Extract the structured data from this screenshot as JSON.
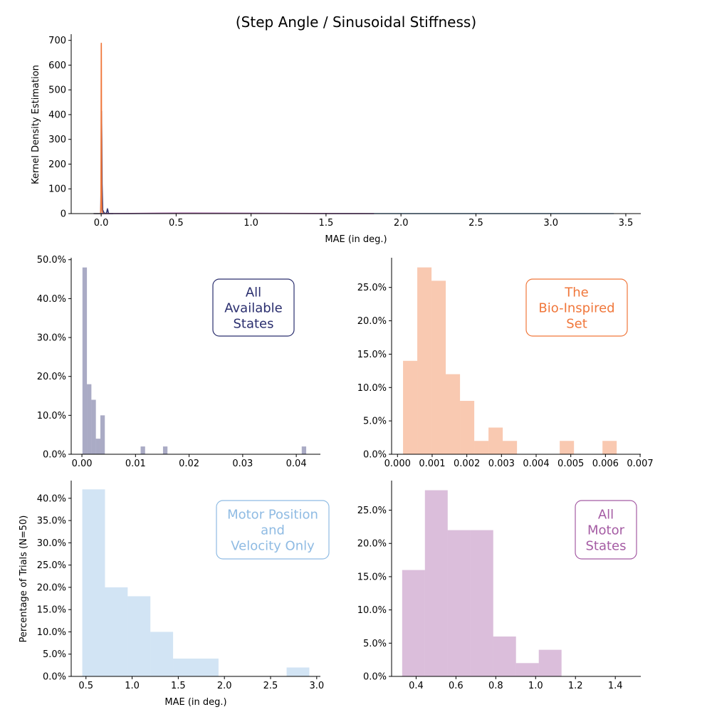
{
  "figure": {
    "title": "(Step Angle / Sinusoidal Stiffness)"
  },
  "colors": {
    "all_available": "#2a2e6e",
    "bio_inspired": "#f0773b",
    "motor_pos_vel": "#8fbbe3",
    "all_motor": "#a55ca4",
    "axis": "#000000"
  },
  "chart_data": [
    {
      "id": "kde",
      "type": "line",
      "title": "",
      "xlabel": "MAE (in deg.)",
      "ylabel": "Kernel Density Estimation",
      "xlim": [
        -0.2,
        3.6
      ],
      "ylim": [
        0,
        725
      ],
      "xticks": [
        "0.0",
        "0.5",
        "1.0",
        "1.5",
        "2.0",
        "2.5",
        "3.0",
        "3.5"
      ],
      "yticks": [
        "0",
        "100",
        "200",
        "300",
        "400",
        "500",
        "600",
        "700"
      ],
      "series": [
        {
          "color_key": "all_available",
          "x": [
            -0.05,
            -0.003,
            0.0,
            0.001,
            0.002,
            0.004,
            0.006,
            0.01,
            0.02,
            0.03,
            0.035,
            0.039,
            0.04,
            0.042,
            0.044,
            0.046,
            0.05,
            0.08
          ],
          "y": [
            0,
            0,
            150,
            390,
            415,
            300,
            120,
            15,
            2,
            1,
            2,
            10,
            15,
            18,
            15,
            8,
            0,
            0
          ]
        },
        {
          "color_key": "bio_inspired",
          "x": [
            -0.05,
            -0.004,
            -0.002,
            -0.001,
            0.0,
            0.0005,
            0.001,
            0.0015,
            0.002,
            0.003,
            0.004,
            0.006,
            0.008,
            0.012,
            0.05
          ],
          "y": [
            0,
            0,
            40,
            200,
            520,
            680,
            690,
            600,
            420,
            150,
            40,
            15,
            5,
            0,
            0
          ]
        },
        {
          "color_key": "motor_pos_vel",
          "x": [
            -0.05,
            0.2,
            0.5,
            0.75,
            1.0,
            1.3,
            1.6,
            2.0,
            2.5,
            2.9,
            3.2,
            3.42
          ],
          "y": [
            0,
            0.3,
            0.9,
            1.1,
            1.0,
            0.7,
            0.45,
            0.25,
            0.12,
            0.18,
            0.08,
            0
          ]
        },
        {
          "color_key": "all_motor",
          "x": [
            0.0,
            0.2,
            0.4,
            0.6,
            0.8,
            1.0,
            1.2,
            1.4,
            1.6,
            1.82
          ],
          "y": [
            0,
            0.6,
            1.5,
            2.0,
            1.8,
            1.4,
            0.9,
            0.6,
            0.3,
            0
          ]
        }
      ]
    },
    {
      "id": "hist_all_available",
      "type": "bar",
      "color_key": "all_available",
      "annotation": [
        "All",
        "Available",
        "States"
      ],
      "xlim": [
        -0.002,
        0.0445
      ],
      "ylim": [
        0,
        0.505
      ],
      "xticks": [
        "0.00",
        "0.01",
        "0.02",
        "0.03",
        "0.04"
      ],
      "xtick_values": [
        0,
        0.01,
        0.02,
        0.03,
        0.04
      ],
      "yticks": [
        "0.0%",
        "10.0%",
        "20.0%",
        "30.0%",
        "40.0%",
        "50.0%"
      ],
      "bin_start": 0.0001,
      "bin_width": 0.000835,
      "values": [
        0.48,
        0.18,
        0.14,
        0.04,
        0.1,
        0,
        0,
        0,
        0,
        0,
        0,
        0,
        0,
        0.02,
        0,
        0,
        0,
        0,
        0.02,
        0,
        0,
        0,
        0,
        0,
        0,
        0,
        0,
        0,
        0,
        0,
        0,
        0,
        0,
        0,
        0,
        0,
        0,
        0,
        0,
        0,
        0,
        0,
        0,
        0,
        0,
        0,
        0,
        0,
        0,
        0.02
      ]
    },
    {
      "id": "hist_bio_inspired",
      "type": "bar",
      "color_key": "bio_inspired",
      "annotation": [
        "The",
        "Bio-Inspired",
        "Set"
      ],
      "xlim": [
        -0.00017,
        0.00702
      ],
      "ylim": [
        0,
        0.2945
      ],
      "xticks": [
        "0.000",
        "0.001",
        "0.002",
        "0.003",
        "0.004",
        "0.005",
        "0.006",
        "0.007"
      ],
      "xtick_values": [
        0,
        0.001,
        0.002,
        0.003,
        0.004,
        0.005,
        0.006,
        0.007
      ],
      "yticks": [
        "0.0%",
        "5.0%",
        "10.0%",
        "15.0%",
        "20.0%",
        "25.0%"
      ],
      "bin_start": 0.00016,
      "bin_width": 0.000411,
      "values": [
        0.14,
        0.28,
        0.26,
        0.12,
        0.08,
        0.02,
        0.04,
        0.02,
        0,
        0,
        0,
        0.02,
        0,
        0,
        0.02
      ]
    },
    {
      "id": "hist_motor_pos_vel",
      "type": "bar",
      "color_key": "motor_pos_vel",
      "annotation": [
        "Motor Position",
        "and",
        "Velocity Only"
      ],
      "xlabel": "MAE (in deg.)",
      "ylabel": "Percentage of Trials (N=50)",
      "xlim": [
        0.34,
        3.04
      ],
      "ylim": [
        0,
        0.4397
      ],
      "xticks": [
        "0.5",
        "1.0",
        "1.5",
        "2.0",
        "2.5",
        "3.0"
      ],
      "xtick_values": [
        0.5,
        1.0,
        1.5,
        2.0,
        2.5,
        3.0
      ],
      "yticks": [
        "0.0%",
        "5.0%",
        "10.0%",
        "15.0%",
        "20.0%",
        "25.0%",
        "30.0%",
        "35.0%",
        "40.0%"
      ],
      "bin_start": 0.46,
      "bin_width": 0.246,
      "values": [
        0.42,
        0.2,
        0.18,
        0.1,
        0.04,
        0.04,
        0,
        0,
        0,
        0.02
      ]
    },
    {
      "id": "hist_all_motor",
      "type": "bar",
      "color_key": "all_motor",
      "annotation": [
        "All",
        "Motor",
        "States"
      ],
      "xlim": [
        0.277,
        1.528
      ],
      "ylim": [
        0,
        0.2945
      ],
      "xticks": [
        "0.4",
        "0.6",
        "0.8",
        "1.0",
        "1.2",
        "1.4"
      ],
      "xtick_values": [
        0.4,
        0.6,
        0.8,
        1.0,
        1.2,
        1.4
      ],
      "yticks": [
        "0.0%",
        "5.0%",
        "10.0%",
        "15.0%",
        "20.0%",
        "25.0%"
      ],
      "bin_start": 0.33,
      "bin_width": 0.1143,
      "values": [
        0.16,
        0.28,
        0.22,
        0.22,
        0.06,
        0.02,
        0.04
      ]
    }
  ]
}
